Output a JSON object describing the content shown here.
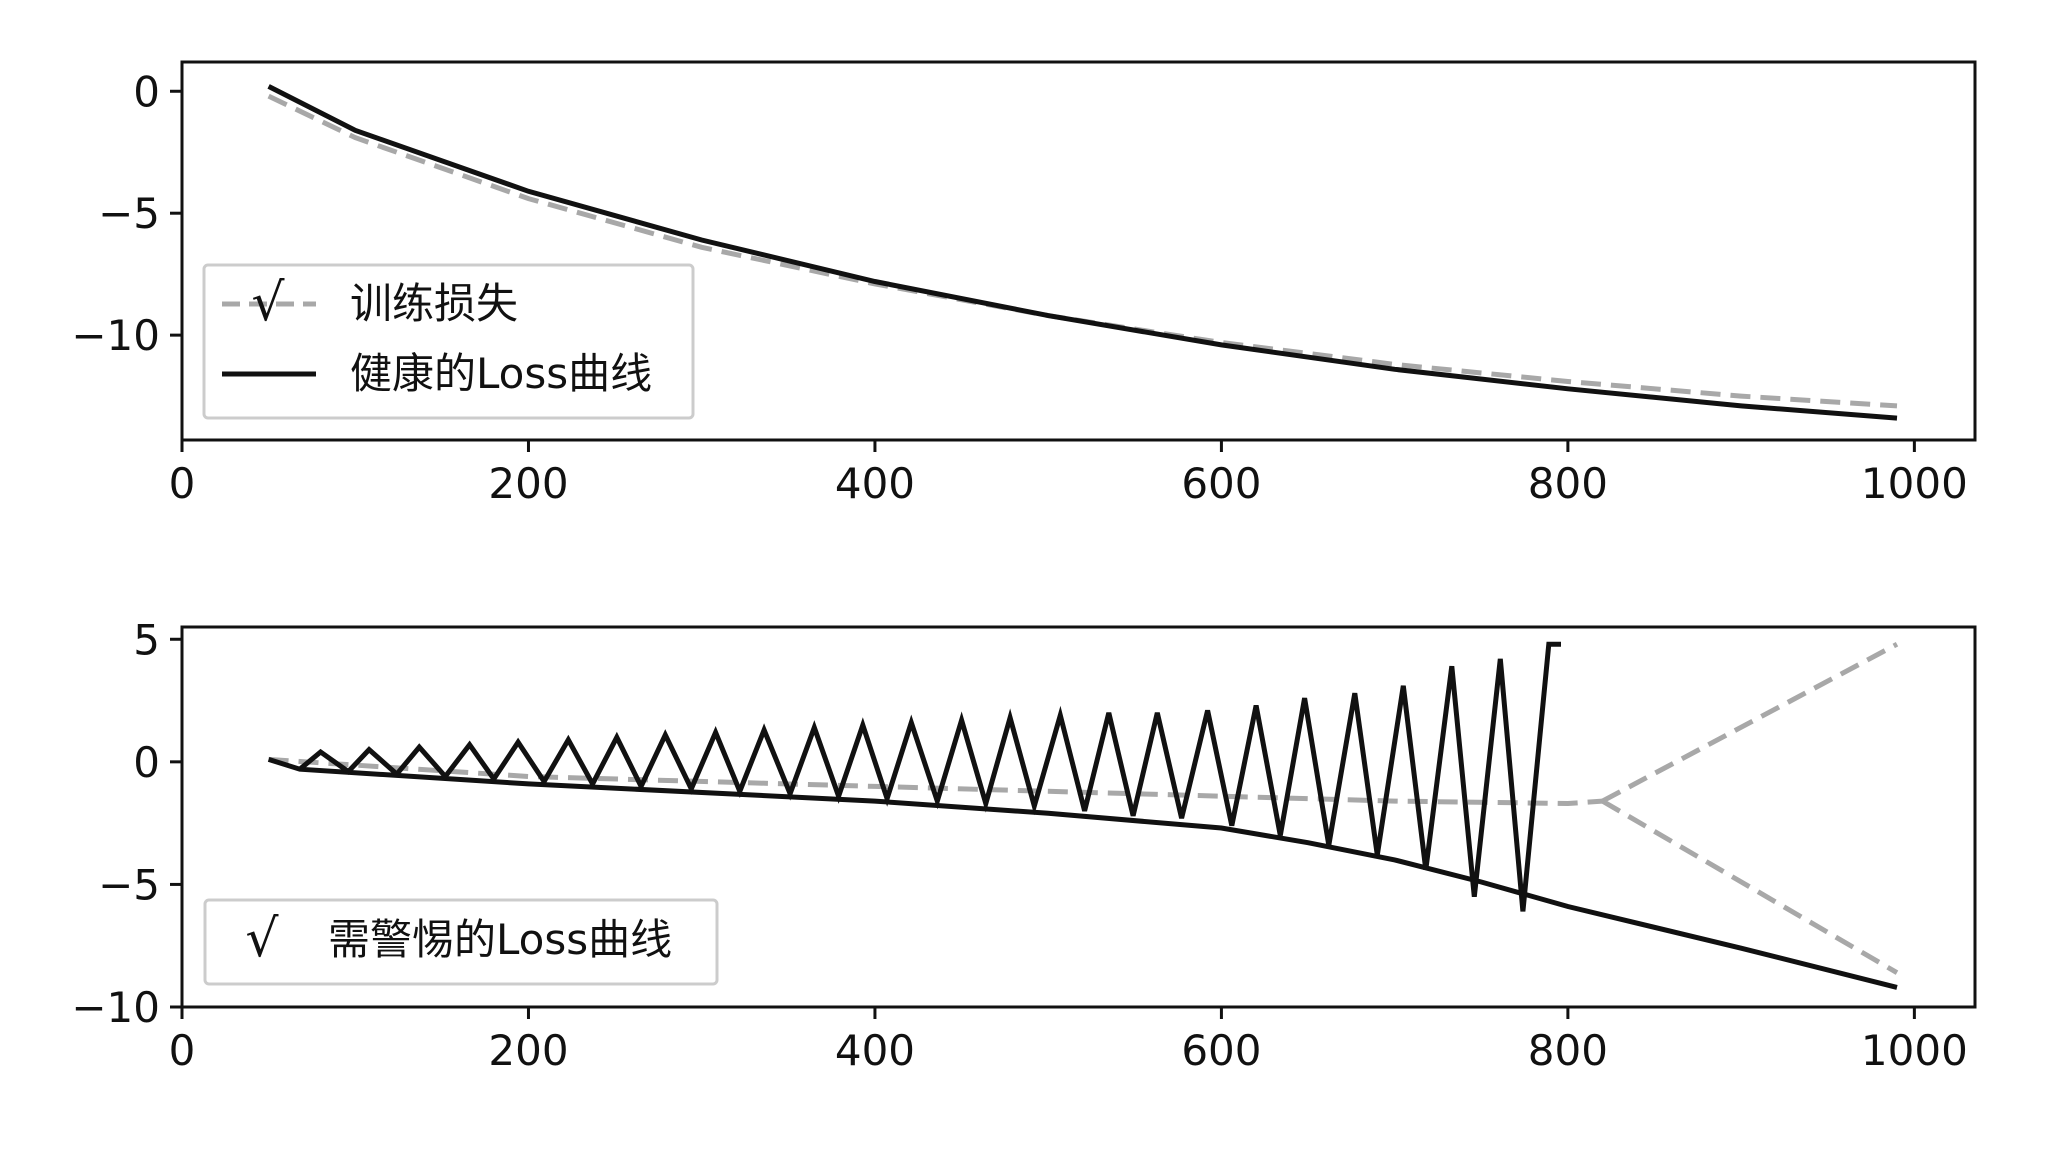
{
  "chart_data": [
    {
      "type": "line",
      "title": "",
      "xlabel": "",
      "ylabel": "",
      "xlim": [
        0,
        1035
      ],
      "ylim": [
        -14.3,
        1.2
      ],
      "xticks": [
        0,
        200,
        400,
        600,
        800,
        1000
      ],
      "xtick_labels": [
        "0",
        "200",
        "400",
        "600",
        "800",
        "1000"
      ],
      "yticks": [
        0,
        -5,
        -10
      ],
      "ytick_labels": [
        "0",
        "−5",
        "−10"
      ],
      "grid": false,
      "legend_position": "lower-left",
      "series": [
        {
          "name": "训练损失",
          "legend_label": "训练损失",
          "legend_marker": "√",
          "style": "dashed",
          "color": "#a8a8a8",
          "x": [
            50,
            100,
            200,
            300,
            400,
            500,
            600,
            700,
            800,
            900,
            990
          ],
          "y": [
            -0.2,
            -1.9,
            -4.4,
            -6.4,
            -7.9,
            -9.2,
            -10.3,
            -11.2,
            -11.9,
            -12.5,
            -12.9
          ]
        },
        {
          "name": "健康的Loss曲线",
          "legend_label": "健康的Loss曲线",
          "style": "solid",
          "color": "#111111",
          "x": [
            50,
            100,
            200,
            300,
            400,
            500,
            600,
            700,
            800,
            900,
            990
          ],
          "y": [
            0.2,
            -1.6,
            -4.1,
            -6.1,
            -7.8,
            -9.2,
            -10.4,
            -11.4,
            -12.2,
            -12.9,
            -13.4
          ]
        }
      ]
    },
    {
      "type": "line",
      "title": "",
      "xlabel": "",
      "ylabel": "",
      "xlim": [
        0,
        1035
      ],
      "ylim": [
        -10,
        5.5
      ],
      "xticks": [
        0,
        200,
        400,
        600,
        800,
        1000
      ],
      "xtick_labels": [
        "0",
        "200",
        "400",
        "600",
        "800",
        "1000"
      ],
      "yticks": [
        5,
        0,
        -5,
        -10
      ],
      "ytick_labels": [
        "5",
        "0",
        "−5",
        "−10"
      ],
      "grid": false,
      "legend_position": "lower-left",
      "legend_entries": [
        {
          "marker": "√",
          "label": "需警惕的Loss曲线"
        }
      ],
      "series": [
        {
          "name": "baseline-dashed",
          "style": "dashed",
          "color": "#a8a8a8",
          "x": [
            50,
            200,
            400,
            600,
            700,
            800,
            820
          ],
          "y": [
            0.1,
            -0.6,
            -1.0,
            -1.4,
            -1.6,
            -1.7,
            -1.6
          ]
        },
        {
          "name": "diverging-up-dashed",
          "style": "dashed",
          "color": "#a8a8a8",
          "x": [
            820,
            990
          ],
          "y": [
            -1.6,
            4.8
          ]
        },
        {
          "name": "diverging-down-dashed",
          "style": "dashed",
          "color": "#a8a8a8",
          "x": [
            820,
            990
          ],
          "y": [
            -1.6,
            -8.6
          ]
        },
        {
          "name": "lower-envelope",
          "style": "solid",
          "color": "#111111",
          "x": [
            50,
            68,
            200,
            400,
            500,
            600,
            650,
            700,
            750,
            800,
            900,
            990
          ],
          "y": [
            0.1,
            -0.3,
            -0.9,
            -1.6,
            -2.1,
            -2.7,
            -3.3,
            -4.0,
            -4.9,
            -5.9,
            -7.6,
            -9.2
          ]
        },
        {
          "name": "oscillation",
          "style": "solid",
          "color": "#111111",
          "x": [
            68,
            80,
            96,
            108,
            124,
            137,
            152,
            166,
            180,
            194,
            209,
            223,
            237,
            251,
            265,
            279,
            294,
            308,
            322,
            336,
            351,
            365,
            379,
            393,
            407,
            421,
            436,
            450,
            464,
            478,
            492,
            507,
            521,
            535,
            549,
            563,
            577,
            592,
            606,
            620,
            634,
            648,
            662,
            677,
            690,
            705,
            718,
            733,
            746,
            761,
            774,
            789,
            796
          ],
          "y": [
            -0.3,
            0.4,
            -0.4,
            0.5,
            -0.5,
            0.6,
            -0.6,
            0.7,
            -0.7,
            0.8,
            -0.8,
            0.9,
            -0.9,
            1.0,
            -1.0,
            1.1,
            -1.1,
            1.2,
            -1.2,
            1.3,
            -1.3,
            1.4,
            -1.4,
            1.5,
            -1.5,
            1.6,
            -1.6,
            1.7,
            -1.7,
            1.8,
            -1.8,
            1.9,
            -2.0,
            2.0,
            -2.2,
            2.0,
            -2.3,
            2.1,
            -2.6,
            2.3,
            -3.0,
            2.6,
            -3.4,
            2.8,
            -3.8,
            3.1,
            -4.4,
            3.9,
            -5.5,
            4.2,
            -6.1,
            4.8,
            4.8
          ]
        }
      ]
    }
  ]
}
